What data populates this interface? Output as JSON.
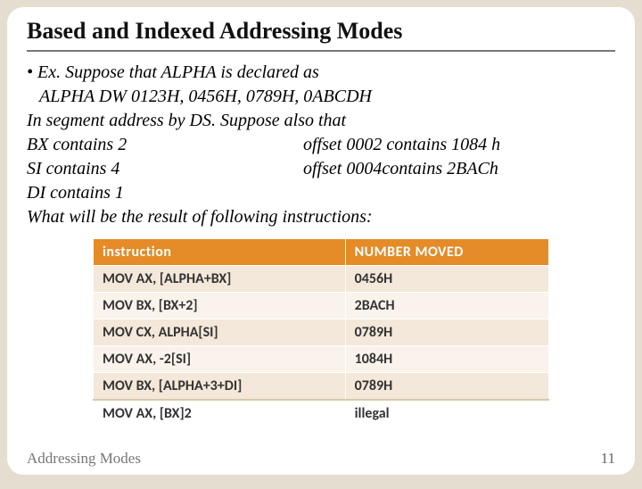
{
  "title": "Based and Indexed Addressing Modes",
  "body": {
    "line1_prefix": "• ",
    "line1": "Ex.  Suppose that ALPHA is declared as",
    "line2": "ALPHA  DW   0123H, 0456H, 0789H, 0ABCDH",
    "line3": "In segment address by DS. Suppose also that",
    "col_left_1": "BX contains 2",
    "col_right_1": "offset 0002 contains 1084 h",
    "col_left_2": "SI contains 4",
    "col_right_2": "offset 0004contains 2BACh",
    "line6": "DI contains 1",
    "line7": "What will be the result of following instructions:"
  },
  "table": {
    "header_bg": "#e58b27",
    "header_fg": "#ffffff",
    "row_odd_bg": "#f3e8d9",
    "row_even_bg": "#f9f3eb",
    "columns": [
      "instruction",
      "NUMBER MOVED"
    ],
    "rows": [
      [
        "MOV AX, [ALPHA+BX]",
        "0456H"
      ],
      [
        "MOV BX, [BX+2]",
        "2BACH"
      ],
      [
        "MOV CX, ALPHA[SI]",
        "0789H"
      ],
      [
        "MOV AX, -2[SI]",
        "1084H"
      ],
      [
        "MOV BX, [ALPHA+3+DI]",
        "0789H"
      ],
      [
        "MOV AX, [BX]2",
        "illegal"
      ]
    ]
  },
  "footer": {
    "label": "Addressing Modes",
    "page": "11"
  }
}
